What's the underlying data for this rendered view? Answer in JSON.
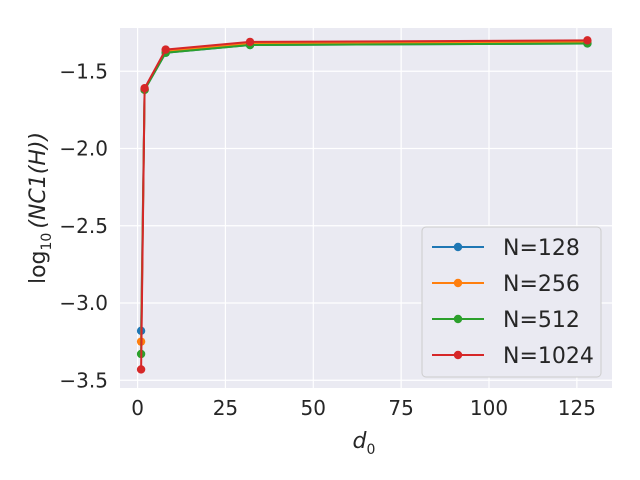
{
  "chart_data": {
    "type": "line",
    "title": "",
    "xlabel": "d",
    "xlabel_sub": "0",
    "ylabel_prefix": "log",
    "ylabel_sub": "10",
    "ylabel_suffix": "(NC1(H))",
    "xlim": [
      -5,
      135
    ],
    "ylim": [
      -3.55,
      -1.22
    ],
    "xticks": [
      0,
      25,
      50,
      75,
      100,
      125
    ],
    "xtick_labels": [
      "0",
      "25",
      "50",
      "75",
      "100",
      "125"
    ],
    "yticks": [
      -3.5,
      -3.0,
      -2.5,
      -2.0,
      -1.5
    ],
    "ytick_labels": [
      "−3.5",
      "−3.0",
      "−2.5",
      "−2.0",
      "−1.5"
    ],
    "grid": true,
    "legend_position": "lower-right",
    "x": [
      1,
      2,
      8,
      32,
      128
    ],
    "series": [
      {
        "name": "N=128",
        "color": "#1f77b4",
        "values": [
          -3.18,
          -1.62,
          -1.38,
          -1.33,
          -1.32
        ]
      },
      {
        "name": "N=256",
        "color": "#ff7f0e",
        "values": [
          -3.25,
          -1.62,
          -1.37,
          -1.32,
          -1.31
        ]
      },
      {
        "name": "N=512",
        "color": "#2ca02c",
        "values": [
          -3.33,
          -1.62,
          -1.38,
          -1.33,
          -1.32
        ]
      },
      {
        "name": "N=1024",
        "color": "#d62728",
        "values": [
          -3.43,
          -1.61,
          -1.36,
          -1.31,
          -1.3
        ]
      }
    ]
  }
}
